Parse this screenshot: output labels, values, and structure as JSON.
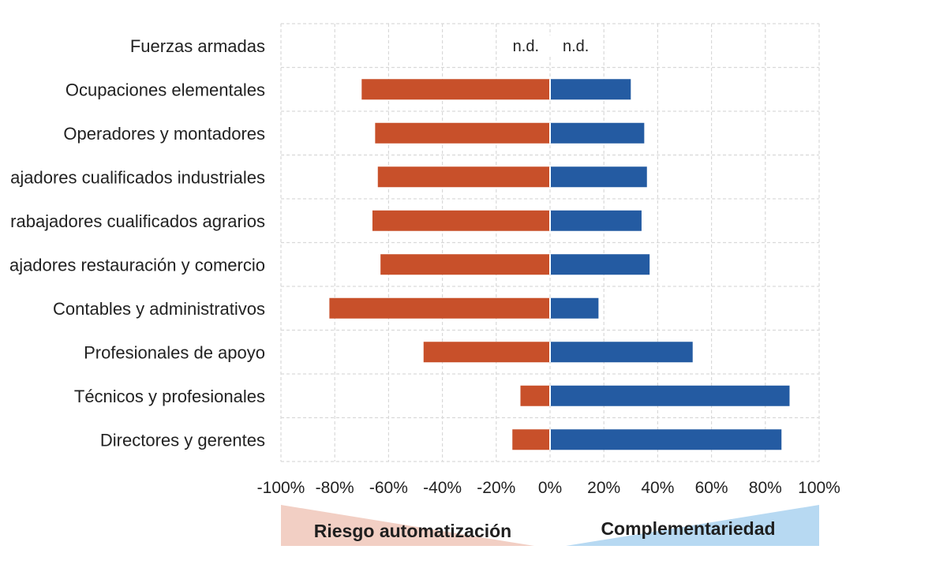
{
  "colors": {
    "risk_bar": "#c8502a",
    "complement_bar": "#245ba2",
    "grid": "#d9d9d9",
    "risk_band": "#f2cfc4",
    "complement_band": "#b7d9f2"
  },
  "chart_data": {
    "type": "bar",
    "orientation": "horizontal-diverging",
    "categories": [
      "Fuerzas armadas",
      "Ocupaciones elementales",
      "Operadores y montadores",
      "ajadores cualificados industriales",
      "rabajadores cualificados agrarios",
      "ajadores restauración y comercio",
      "Contables y administrativos",
      "Profesionales de apoyo",
      "Técnicos y profesionales",
      "Directores y gerentes"
    ],
    "series": [
      {
        "key": "riesgo",
        "values": [
          null,
          -70,
          -65,
          -64,
          -66,
          -63,
          -82,
          -47,
          -11,
          -14
        ]
      },
      {
        "key": "complementariedad",
        "values": [
          null,
          30,
          35,
          36,
          34,
          37,
          18,
          53,
          89,
          86
        ]
      }
    ],
    "not_available_label": "n.d.",
    "xlim": [
      -100,
      100
    ],
    "x_ticks": [
      -100,
      -80,
      -60,
      -40,
      -20,
      0,
      20,
      40,
      60,
      80,
      100
    ],
    "x_tick_labels": [
      "-100%",
      "-80%",
      "-60%",
      "-40%",
      "-20%",
      "0%",
      "20%",
      "40%",
      "60%",
      "80%",
      "100%"
    ],
    "grid": true,
    "bands": {
      "left": "Riesgo automatización",
      "right": "Complementariedad"
    }
  }
}
